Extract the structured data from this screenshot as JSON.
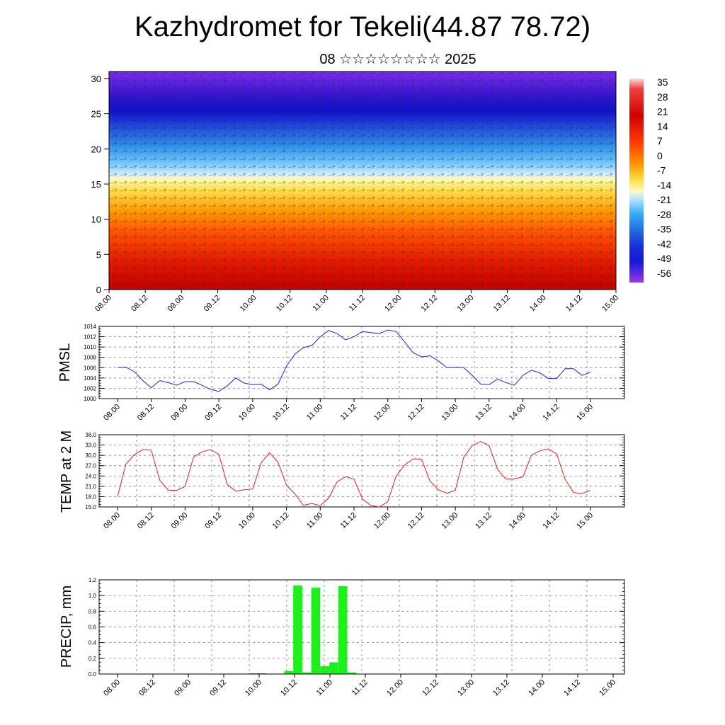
{
  "title": "Kazhydromet for Tekeli(44.87 78.72)",
  "subtitle": "08 ☆☆☆☆☆☆☆☆ 2025",
  "time_ticks": [
    "08.00",
    "08.12",
    "09.00",
    "09.12",
    "10.00",
    "10.12",
    "11.00",
    "11.12",
    "12.00",
    "12.12",
    "13.00",
    "13.12",
    "14.00",
    "14.12",
    "15.00"
  ],
  "chart_data": [
    {
      "id": "cross-section",
      "type": "heatmap",
      "title": "",
      "xlabel": "",
      "ylabel": "",
      "yticks": [
        0,
        5,
        10,
        15,
        20,
        25,
        30
      ],
      "ylim": [
        0,
        31
      ],
      "colorbar": {
        "labels": [
          "35",
          "28",
          "21",
          "14",
          "7",
          "0",
          "-7",
          "-14",
          "-21",
          "-28",
          "-35",
          "-42",
          "-49",
          "-56"
        ],
        "range": [
          -60,
          38
        ]
      },
      "overlay": "wind vectors"
    },
    {
      "id": "pmsl",
      "type": "line",
      "ylabel": "PMSL",
      "color": "#1f1fe0",
      "ylim": [
        1000,
        1014
      ],
      "yticks": [
        "1000",
        "1002",
        "1004",
        "1006",
        "1008",
        "1010",
        "1012",
        "1014"
      ],
      "x_range": [
        0,
        14
      ],
      "values": [
        1006.0,
        1006.1,
        1005.2,
        1003.5,
        1002.1,
        1003.5,
        1003.1,
        1002.6,
        1003.3,
        1003.3,
        1002.6,
        1001.8,
        1001.4,
        1002.5,
        1004.0,
        1003.0,
        1002.7,
        1002.8,
        1001.7,
        1002.8,
        1006.3,
        1008.6,
        1009.9,
        1010.3,
        1012.0,
        1013.2,
        1012.6,
        1011.4,
        1012.0,
        1013.0,
        1012.8,
        1012.6,
        1013.3,
        1013.0,
        1011.0,
        1008.9,
        1008.1,
        1008.3,
        1007.3,
        1006.0,
        1006.1,
        1006.0,
        1004.5,
        1002.8,
        1002.7,
        1003.8,
        1003.1,
        1002.6,
        1004.5,
        1005.5,
        1005.0,
        1003.9,
        1003.9,
        1005.8,
        1005.8,
        1004.5,
        1005.1
      ]
    },
    {
      "id": "temp2m",
      "type": "line",
      "ylabel": "TEMP at 2 M",
      "color": "#e01f1f",
      "ylim": [
        15,
        36
      ],
      "yticks": [
        "15.0",
        "18.0",
        "21.0",
        "24.0",
        "27.0",
        "30.0",
        "33.0",
        "36.0"
      ],
      "x_range": [
        0,
        14
      ],
      "values": [
        18.0,
        27.5,
        30.2,
        31.7,
        31.5,
        22.8,
        19.9,
        19.8,
        21.0,
        29.5,
        31.0,
        31.7,
        30.3,
        21.5,
        19.6,
        20.0,
        20.2,
        27.8,
        30.8,
        28.0,
        21.3,
        18.8,
        15.5,
        16.0,
        15.4,
        17.6,
        22.3,
        23.8,
        23.1,
        17.3,
        15.4,
        15.0,
        16.5,
        24.0,
        27.2,
        29.0,
        28.9,
        22.5,
        20.0,
        19.0,
        19.9,
        29.5,
        32.9,
        34.0,
        32.8,
        25.9,
        23.1,
        23.2,
        23.7,
        30.0,
        31.3,
        31.9,
        30.4,
        23.0,
        19.2,
        18.9,
        19.8
      ]
    },
    {
      "id": "precip",
      "type": "bar",
      "ylabel": "PRECIP, mm",
      "color": "#1cef1c",
      "ylim": [
        0,
        1.2
      ],
      "yticks": [
        "0.0",
        "0.2",
        "0.4",
        "0.6",
        "0.8",
        "1.0",
        "1.2"
      ],
      "x_range": [
        0,
        14
      ],
      "values": [
        0,
        0,
        0,
        0,
        0,
        0,
        0,
        0,
        0,
        0,
        0,
        0,
        0,
        0,
        0,
        0.01,
        0.01,
        0,
        0,
        0.04,
        1.13,
        0.02,
        1.1,
        0.1,
        0.15,
        1.12,
        0.02,
        0,
        0,
        0,
        0,
        0,
        0,
        0,
        0,
        0,
        0,
        0,
        0,
        0,
        0,
        0,
        0,
        0,
        0,
        0,
        0,
        0,
        0,
        0,
        0,
        0,
        0,
        0,
        0,
        0
      ]
    }
  ]
}
